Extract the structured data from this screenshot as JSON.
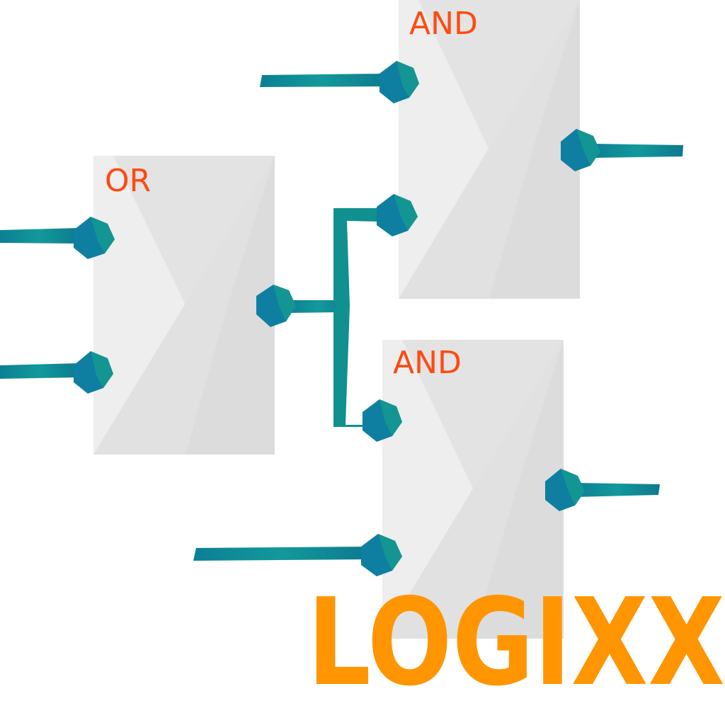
{
  "colors": {
    "gate_light": "#ebebeb",
    "gate_mid": "#e0e0e0",
    "gate_dark": "#d8d8d8",
    "wire": "#10908f",
    "wire_dark": "#0c6f86",
    "pin_a": "#0e7fa0",
    "pin_b": "#138f8d",
    "pin_c": "#0b6f8c",
    "label": "#ff4a10",
    "brand": "#ff9500"
  },
  "gates": [
    {
      "id": "or-gate",
      "label": "OR"
    },
    {
      "id": "and-gate-top",
      "label": "AND"
    },
    {
      "id": "and-gate-bottom",
      "label": "AND"
    }
  ],
  "brand": {
    "name": "LOGIXX"
  }
}
